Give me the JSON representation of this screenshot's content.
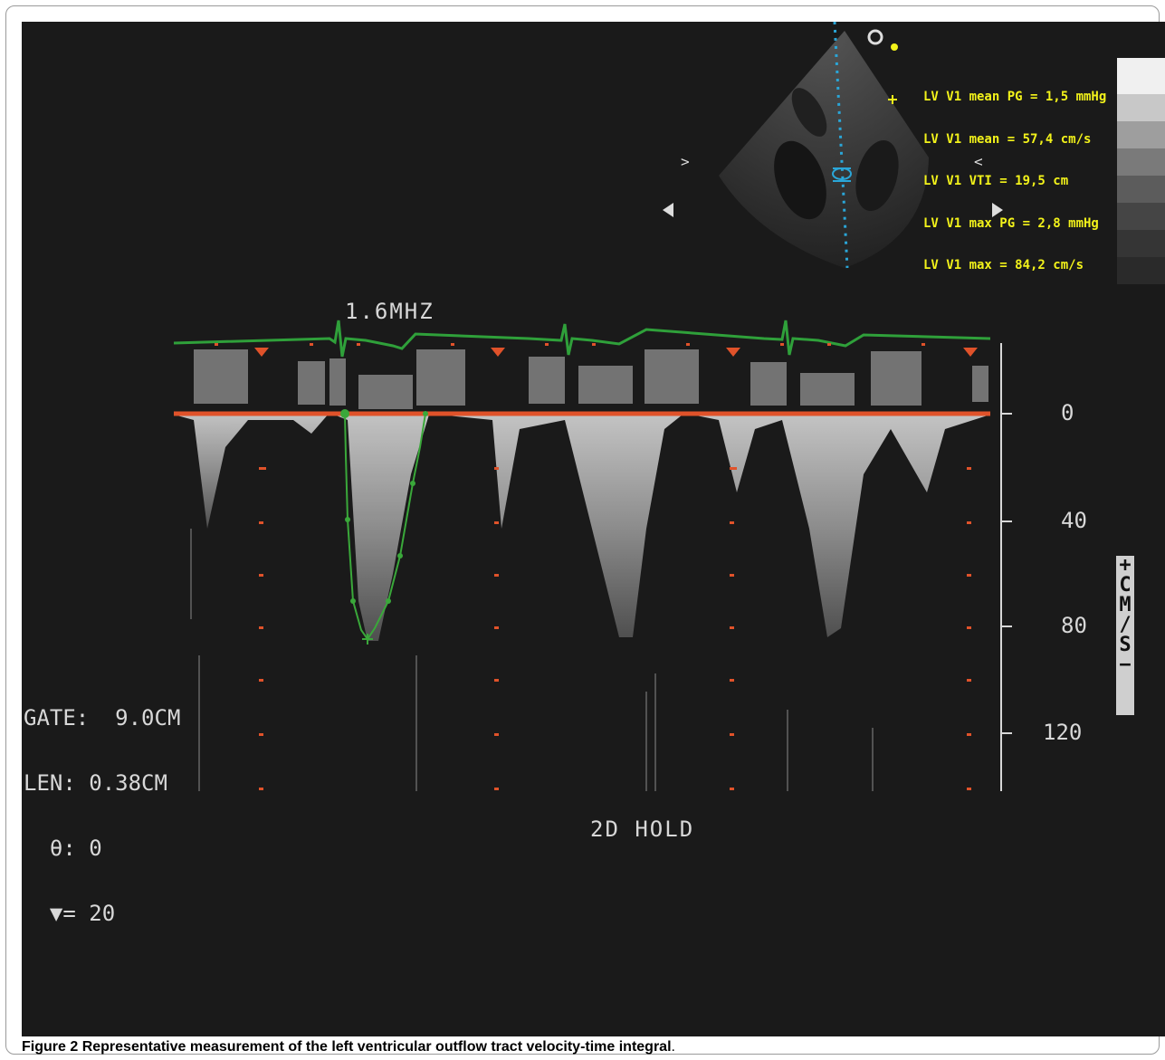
{
  "figure": {
    "label": "Figure 2",
    "caption_text": "Representative measurement of the left ventricular outflow tract velocity-time integral",
    "caption_period": "."
  },
  "measurements": [
    "LV V1 mean PG = 1,5 mmHg",
    "LV V1 mean = 57,4 cm/s",
    "LV V1 VTI = 19,5 cm",
    "LV V1 max PG = 2,8 mmHg",
    "LV V1 max = 84,2 cm/s"
  ],
  "probe_frequency": "1.6MHZ",
  "mode_status": "2D HOLD",
  "parameters": [
    "GATE:  9.0CM",
    "LEN: 0.38CM",
    "  θ: 0",
    "  ▼= 20"
  ],
  "velocity_scale": {
    "ticks": [
      "0",
      "40",
      "80",
      "120"
    ],
    "unit_label": [
      "+",
      "C",
      "M",
      "/",
      "S",
      "−"
    ]
  },
  "colors": {
    "background": "#1a1a1a",
    "measurement_text": "#f2f21a",
    "ecg_trace": "#2fa03a",
    "baseline": "#e0522a",
    "vti_trace": "#3aa83a",
    "scan_line": "#2aa6d8"
  }
}
